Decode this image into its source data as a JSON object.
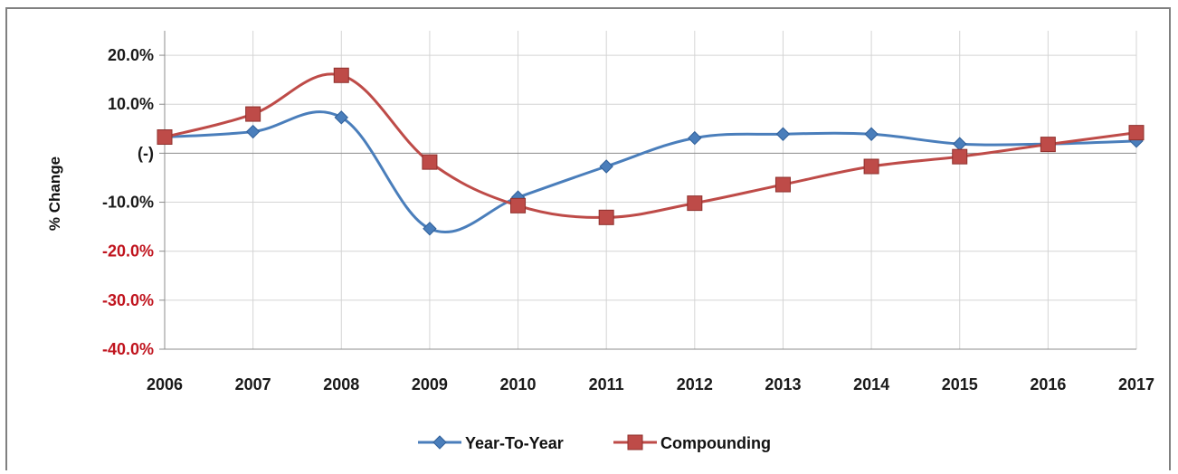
{
  "title_fragment": "",
  "chart_data": {
    "type": "line",
    "title": "",
    "xlabel": "",
    "ylabel": "% Change",
    "categories": [
      "2006",
      "2007",
      "2008",
      "2009",
      "2010",
      "2011",
      "2012",
      "2013",
      "2014",
      "2015",
      "2016",
      "2017"
    ],
    "ylim": [
      -40,
      25
    ],
    "yticks": [
      {
        "value": 20,
        "label": "20.0%",
        "color": "#1a1a1a"
      },
      {
        "value": 10,
        "label": "10.0%",
        "color": "#1a1a1a"
      },
      {
        "value": 0,
        "label": "(-)",
        "color": "#1a1a1a"
      },
      {
        "value": -10,
        "label": "-10.0%",
        "color": "#1a1a1a"
      },
      {
        "value": -20,
        "label": "-20.0%",
        "color": "#c0141e"
      },
      {
        "value": -30,
        "label": "-30.0%",
        "color": "#c0141e"
      },
      {
        "value": -40,
        "label": "-40.0%",
        "color": "#c0141e"
      }
    ],
    "grid": true,
    "legend_position": "bottom",
    "series": [
      {
        "name": "Year-To-Year",
        "color": "#4a7ebb",
        "marker": "diamond",
        "values": [
          3.3,
          4.4,
          7.3,
          -15.4,
          -9.0,
          -2.7,
          3.1,
          3.9,
          3.9,
          1.9,
          1.9,
          2.5
        ]
      },
      {
        "name": "Compounding",
        "color": "#be4b48",
        "marker": "square",
        "values": [
          3.3,
          8.0,
          15.9,
          -1.8,
          -10.7,
          -13.1,
          -10.2,
          -6.4,
          -2.7,
          -0.7,
          1.8,
          4.2
        ]
      }
    ]
  }
}
